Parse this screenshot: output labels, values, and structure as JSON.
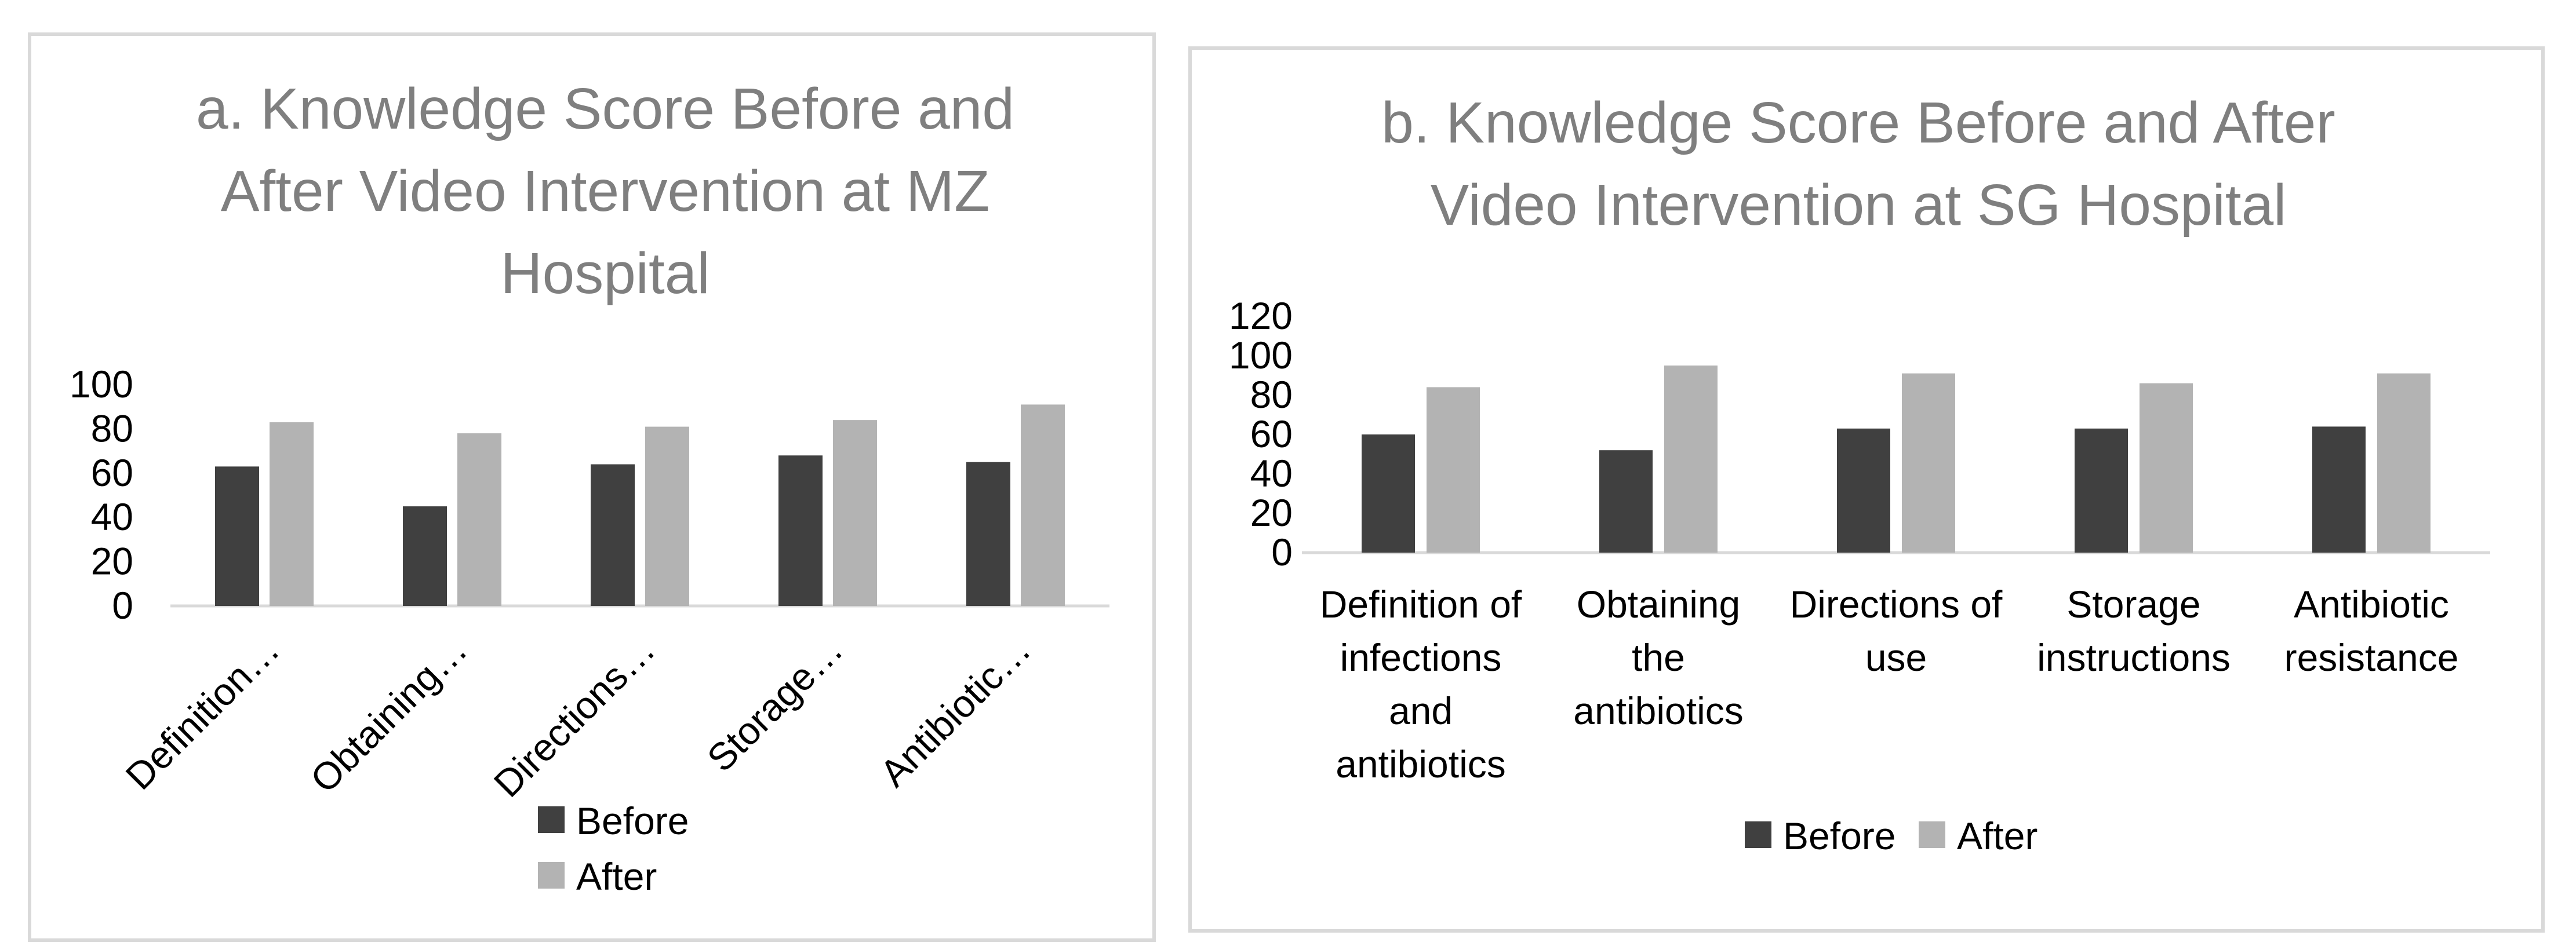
{
  "chart_data": [
    {
      "type": "bar",
      "title": "a. Knowledge Score Before and After Video Intervention at MZ Hospital",
      "title_lines": [
        "a. Knowledge Score Before and",
        "After Video Intervention at MZ",
        "Hospital"
      ],
      "categories": [
        "Definition…",
        "Obtaining…",
        "Directions…",
        "Storage…",
        "Antibiotic…"
      ],
      "series": [
        {
          "name": "Before",
          "values": [
            63,
            45,
            64,
            68,
            65
          ],
          "color": "#404040"
        },
        {
          "name": "After",
          "values": [
            83,
            78,
            81,
            84,
            91
          ],
          "color": "#b3b3b3"
        }
      ],
      "yticks": [
        0,
        20,
        40,
        60,
        80,
        100
      ],
      "ylim": [
        0,
        100
      ],
      "xlabel": "",
      "ylabel": "",
      "grid": false,
      "legend_position": "bottom"
    },
    {
      "type": "bar",
      "title": "b. Knowledge Score Before and After Video Intervention at SG Hospital",
      "title_lines": [
        "b. Knowledge Score Before and After",
        "Video Intervention at SG Hospital"
      ],
      "categories": [
        [
          "Definition of",
          "infections",
          "and",
          "antibiotics"
        ],
        [
          "Obtaining",
          "the",
          "antibiotics"
        ],
        [
          "Directions of",
          "use"
        ],
        [
          "Storage",
          "instructions"
        ],
        [
          "Antibiotic",
          "resistance"
        ]
      ],
      "series": [
        {
          "name": "Before",
          "values": [
            60,
            52,
            63,
            63,
            64
          ],
          "color": "#404040"
        },
        {
          "name": "After",
          "values": [
            84,
            95,
            91,
            86,
            91
          ],
          "color": "#b3b3b3"
        }
      ],
      "yticks": [
        0,
        20,
        40,
        60,
        80,
        100,
        120
      ],
      "ylim": [
        0,
        120
      ],
      "xlabel": "",
      "ylabel": "",
      "grid": false,
      "legend_position": "bottom"
    }
  ]
}
